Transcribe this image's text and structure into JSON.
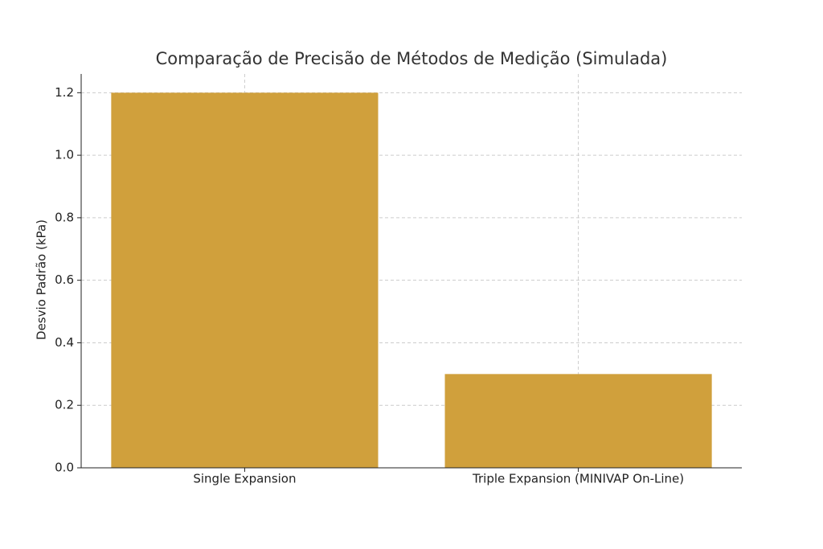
{
  "chart_data": {
    "type": "bar",
    "title": "Comparação de Precisão de Métodos de Medição (Simulada)",
    "y_label": "Desvio Padrão (kPa)",
    "categories": [
      "Single Expansion",
      "Triple Expansion (MINIVAP On-Line)"
    ],
    "values": [
      1.2,
      0.3
    ],
    "color": "#d0a03c",
    "ylim": [
      0,
      1.26
    ],
    "yticks": [
      {
        "value": 0,
        "label": "0.0"
      },
      0.2,
      0.4,
      0.6,
      0.8,
      {
        "value": 1,
        "label": "1.0"
      },
      1.2
    ],
    "grid": true
  }
}
